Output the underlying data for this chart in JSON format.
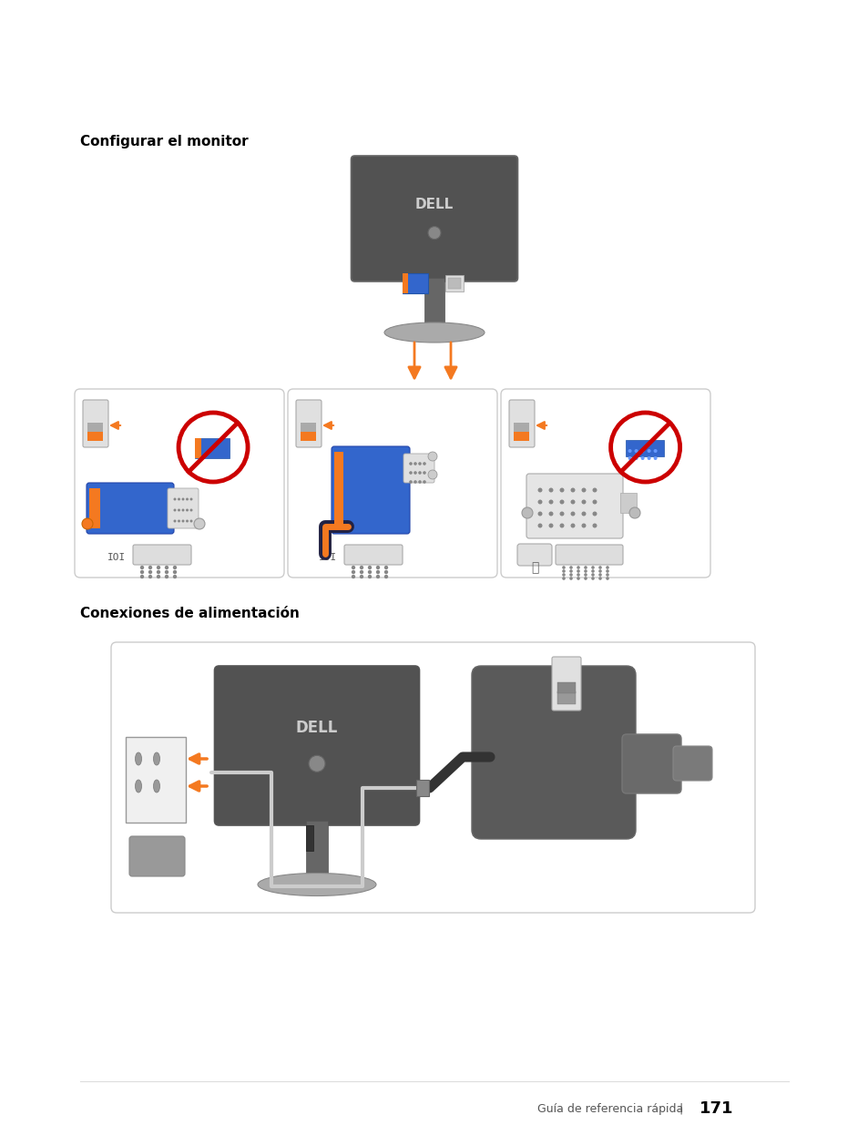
{
  "title1": "Configurar el monitor",
  "title2": "Conexiones de alimentación",
  "footer_text": "Guía de referencia rápida",
  "footer_separator": "|",
  "footer_page": "171",
  "bg_color": "#ffffff",
  "orange": "#F47920",
  "red": "#CC0000",
  "dark_gray": "#4a4a4a",
  "mid_gray": "#777777",
  "light_gray": "#aaaaaa",
  "very_light_gray": "#e8e8e8",
  "blue": "#3355aa",
  "box_edge": "#cccccc",
  "box_face": "#f5f5f5"
}
